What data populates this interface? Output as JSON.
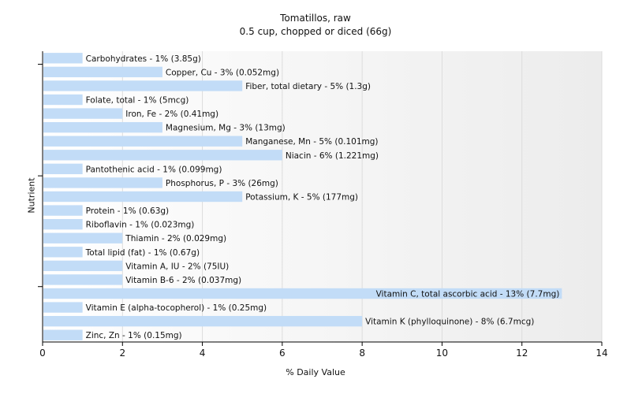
{
  "chart_data": {
    "type": "bar",
    "orientation": "horizontal",
    "title": "Tomatillos, raw",
    "subtitle": "0.5 cup, chopped or diced (66g)",
    "xlabel": "% Daily Value",
    "ylabel": "Nutrient",
    "xlim": [
      0,
      14
    ],
    "xticks": [
      0,
      2,
      4,
      6,
      8,
      10,
      12,
      14
    ],
    "grid": true,
    "bar_color": "#c2dcf7",
    "categories": [
      "Carbohydrates",
      "Copper, Cu",
      "Fiber, total dietary",
      "Folate, total",
      "Iron, Fe",
      "Magnesium, Mg",
      "Manganese, Mn",
      "Niacin",
      "Pantothenic acid",
      "Phosphorus, P",
      "Potassium, K",
      "Protein",
      "Riboflavin",
      "Thiamin",
      "Total lipid (fat)",
      "Vitamin A, IU",
      "Vitamin B-6",
      "Vitamin C, total ascorbic acid",
      "Vitamin E (alpha-tocopherol)",
      "Vitamin K (phylloquinone)",
      "Zinc, Zn"
    ],
    "values": [
      1,
      3,
      5,
      1,
      2,
      3,
      5,
      6,
      1,
      3,
      5,
      1,
      1,
      2,
      1,
      2,
      2,
      13,
      1,
      8,
      1
    ],
    "labels": [
      "Carbohydrates - 1% (3.85g)",
      "Copper, Cu - 3% (0.052mg)",
      "Fiber, total dietary - 5% (1.3g)",
      "Folate, total - 1% (5mcg)",
      "Iron, Fe - 2% (0.41mg)",
      "Magnesium, Mg - 3% (13mg)",
      "Manganese, Mn - 5% (0.101mg)",
      "Niacin - 6% (1.221mg)",
      "Pantothenic acid - 1% (0.099mg)",
      "Phosphorus, P - 3% (26mg)",
      "Potassium, K - 5% (177mg)",
      "Protein - 1% (0.63g)",
      "Riboflavin - 1% (0.023mg)",
      "Thiamin - 2% (0.029mg)",
      "Total lipid (fat) - 1% (0.67g)",
      "Vitamin A, IU - 2% (75IU)",
      "Vitamin B-6 - 2% (0.037mg)",
      "Vitamin C, total ascorbic acid - 13% (7.7mg)",
      "Vitamin E (alpha-tocopherol) - 1% (0.25mg)",
      "Vitamin K (phylloquinone) - 8% (6.7mcg)",
      "Zinc, Zn - 1% (0.15mg)"
    ]
  }
}
